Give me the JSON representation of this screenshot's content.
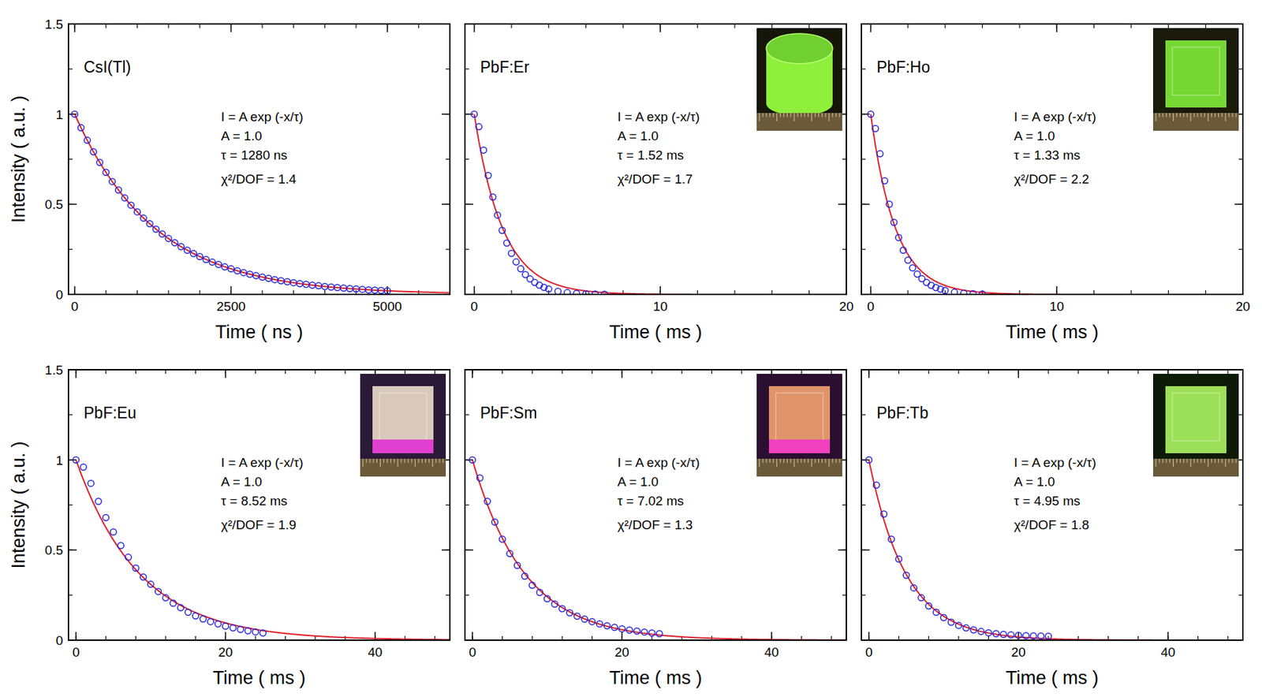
{
  "chart_data": [
    {
      "type": "scatter",
      "title": "CsI(Tl)",
      "color": "#2222dd",
      "marker": "circle",
      "xlabel": "Time ( ns )",
      "ylabel": "Intensity ( a.u. )",
      "xlim": [
        -100,
        6000
      ],
      "ylim": [
        0,
        1.5
      ],
      "xticks": [
        0,
        2500,
        5000
      ],
      "yticks": [
        0,
        0.5,
        1,
        1.5
      ],
      "x": [
        0,
        100,
        200,
        300,
        400,
        500,
        600,
        700,
        800,
        900,
        1000,
        1100,
        1200,
        1300,
        1400,
        1500,
        1600,
        1700,
        1800,
        1900,
        2000,
        2100,
        2200,
        2300,
        2400,
        2500,
        2600,
        2700,
        2800,
        2900,
        3000,
        3100,
        3200,
        3300,
        3400,
        3500,
        3600,
        3700,
        3800,
        3900,
        4000,
        4100,
        4200,
        4300,
        4400,
        4500,
        4600,
        4700,
        4800,
        4900,
        5000
      ],
      "values": [
        1.0,
        0.925,
        0.855,
        0.791,
        0.732,
        0.677,
        0.626,
        0.579,
        0.535,
        0.495,
        0.458,
        0.423,
        0.392,
        0.362,
        0.335,
        0.31,
        0.287,
        0.265,
        0.245,
        0.227,
        0.21,
        0.194,
        0.179,
        0.166,
        0.153,
        0.142,
        0.131,
        0.121,
        0.112,
        0.104,
        0.096,
        0.089,
        0.082,
        0.076,
        0.07,
        0.065,
        0.06,
        0.056,
        0.051,
        0.048,
        0.044,
        0.041,
        0.038,
        0.035,
        0.032,
        0.03,
        0.028,
        0.025,
        0.024,
        0.022,
        0.02
      ],
      "fit": {
        "A": 1.0,
        "tau": 1280,
        "color": "#e02028",
        "line_style": "solid"
      },
      "annotations": [
        "I = A exp (-x/τ)",
        "A = 1.0",
        "τ = 1280 ns",
        "χ²/DOF = 1.4"
      ]
    },
    {
      "type": "scatter",
      "title": "PbF:Er",
      "color": "#2222dd",
      "marker": "circle",
      "xlabel": "Time ( ms )",
      "tick_labels": "x",
      "xlim": [
        -0.5,
        20
      ],
      "ylim": [
        0,
        1.5
      ],
      "xticks": [
        0,
        10,
        20
      ],
      "yticks": [
        0,
        0.5,
        1,
        1.5
      ],
      "x": [
        0,
        0.25,
        0.5,
        0.75,
        1,
        1.25,
        1.5,
        1.75,
        2,
        2.25,
        2.5,
        2.75,
        3,
        3.25,
        3.5,
        3.75,
        4,
        4.5,
        5,
        5.5,
        6,
        6.5,
        7
      ],
      "values": [
        1.0,
        0.93,
        0.8,
        0.66,
        0.54,
        0.44,
        0.355,
        0.285,
        0.228,
        0.18,
        0.142,
        0.11,
        0.086,
        0.066,
        0.051,
        0.039,
        0.03,
        0.017,
        0.01,
        0.006,
        0.003,
        0.002,
        0.001
      ],
      "fit": {
        "A": 1.0,
        "tau": 1.52,
        "color": "#e02028",
        "line_style": "solid"
      },
      "annotations": [
        "I = A exp (-x/τ)",
        "A = 1.0",
        "τ = 1.52 ms",
        "χ²/DOF = 1.7"
      ]
    },
    {
      "type": "scatter",
      "title": "PbF:Ho",
      "color": "#2222dd",
      "marker": "circle",
      "xlabel": "Time ( ms )",
      "tick_labels": "x",
      "xlim": [
        -0.5,
        20
      ],
      "ylim": [
        0,
        1.5
      ],
      "xticks": [
        0,
        10,
        20
      ],
      "yticks": [
        0,
        0.5,
        1,
        1.5
      ],
      "x": [
        0,
        0.25,
        0.5,
        0.75,
        1,
        1.25,
        1.5,
        1.75,
        2,
        2.25,
        2.5,
        2.75,
        3,
        3.25,
        3.5,
        3.75,
        4,
        4.5,
        5,
        5.5,
        6
      ],
      "values": [
        1.0,
        0.92,
        0.78,
        0.63,
        0.5,
        0.4,
        0.315,
        0.245,
        0.19,
        0.147,
        0.113,
        0.087,
        0.066,
        0.05,
        0.038,
        0.029,
        0.022,
        0.012,
        0.007,
        0.004,
        0.002
      ],
      "fit": {
        "A": 1.0,
        "tau": 1.33,
        "color": "#e02028",
        "line_style": "solid"
      },
      "annotations": [
        "I = A exp (-x/τ)",
        "A = 1.0",
        "τ = 1.33 ms",
        "χ²/DOF = 2.2"
      ]
    },
    {
      "type": "scatter",
      "title": "PbF:Eu",
      "color": "#2222dd",
      "marker": "circle",
      "xlabel": "Time ( ms )",
      "ylabel": "Intensity ( a.u. )",
      "xlim": [
        -1,
        50
      ],
      "ylim": [
        0,
        1.5
      ],
      "xticks": [
        0,
        20,
        40
      ],
      "yticks": [
        0,
        0.5,
        1,
        1.5
      ],
      "x": [
        0,
        1,
        2,
        3,
        4,
        5,
        6,
        7,
        8,
        9,
        10,
        11,
        12,
        13,
        14,
        15,
        16,
        17,
        18,
        19,
        20,
        21,
        22,
        23,
        24,
        25
      ],
      "values": [
        1.0,
        0.96,
        0.87,
        0.77,
        0.68,
        0.6,
        0.525,
        0.46,
        0.4,
        0.35,
        0.31,
        0.27,
        0.235,
        0.205,
        0.18,
        0.155,
        0.135,
        0.118,
        0.103,
        0.09,
        0.078,
        0.068,
        0.06,
        0.052,
        0.046,
        0.04
      ],
      "fit": {
        "A": 1.0,
        "tau": 8.52,
        "color": "#e02028",
        "line_style": "solid"
      },
      "annotations": [
        "I = A exp (-x/τ)",
        "A = 1.0",
        "τ = 8.52 ms",
        "χ²/DOF = 1.9"
      ]
    },
    {
      "type": "scatter",
      "title": "PbF:Sm",
      "color": "#2222dd",
      "marker": "circle",
      "xlabel": "Time ( ms )",
      "tick_labels": "x",
      "xlim": [
        -1,
        50
      ],
      "ylim": [
        0,
        1.5
      ],
      "xticks": [
        0,
        20,
        40
      ],
      "yticks": [
        0,
        0.5,
        1,
        1.5
      ],
      "x": [
        0,
        1,
        2,
        3,
        4,
        5,
        6,
        7,
        8,
        9,
        10,
        11,
        12,
        13,
        14,
        15,
        16,
        17,
        18,
        19,
        20,
        21,
        22,
        23,
        24,
        25
      ],
      "values": [
        1.0,
        0.9,
        0.77,
        0.655,
        0.56,
        0.48,
        0.415,
        0.355,
        0.305,
        0.265,
        0.23,
        0.2,
        0.175,
        0.152,
        0.133,
        0.117,
        0.103,
        0.09,
        0.08,
        0.071,
        0.063,
        0.056,
        0.05,
        0.045,
        0.04,
        0.036
      ],
      "fit": {
        "A": 1.0,
        "tau": 7.02,
        "color": "#e02028",
        "line_style": "solid"
      },
      "annotations": [
        "I = A exp (-x/τ)",
        "A = 1.0",
        "τ = 7.02 ms",
        "χ²/DOF = 1.3"
      ]
    },
    {
      "type": "scatter",
      "title": "PbF:Tb",
      "color": "#2222dd",
      "marker": "circle",
      "xlabel": "Time ( ms )",
      "tick_labels": "x",
      "xlim": [
        -1,
        50
      ],
      "ylim": [
        0,
        1.5
      ],
      "xticks": [
        0,
        20,
        40
      ],
      "yticks": [
        0,
        0.5,
        1,
        1.5
      ],
      "x": [
        0,
        1,
        2,
        3,
        4,
        5,
        6,
        7,
        8,
        9,
        10,
        11,
        12,
        13,
        14,
        15,
        16,
        17,
        18,
        19,
        20,
        21,
        22,
        23,
        24
      ],
      "values": [
        1.0,
        0.86,
        0.7,
        0.56,
        0.45,
        0.36,
        0.29,
        0.235,
        0.19,
        0.155,
        0.125,
        0.1,
        0.082,
        0.068,
        0.057,
        0.048,
        0.041,
        0.036,
        0.032,
        0.029,
        0.027,
        0.025,
        0.024,
        0.023,
        0.022
      ],
      "fit": {
        "A": 1.0,
        "tau": 4.95,
        "color": "#e02028",
        "line_style": "solid"
      },
      "annotations": [
        "I = A exp (-x/τ)",
        "A = 1.0",
        "τ = 4.95 ms",
        "χ²/DOF = 1.8"
      ]
    }
  ]
}
